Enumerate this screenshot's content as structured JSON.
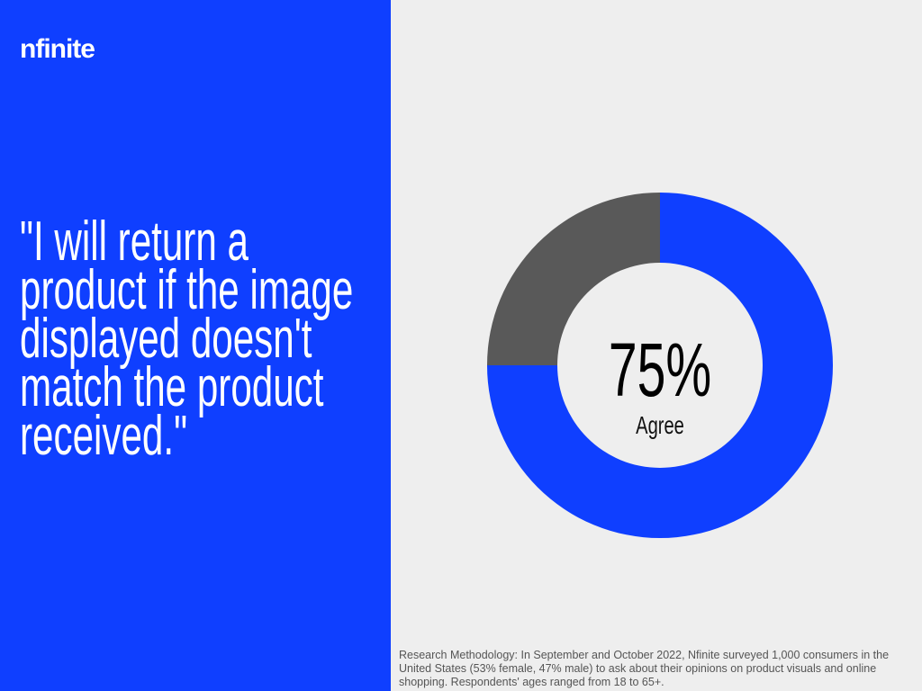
{
  "logo": "nfinite",
  "quote": "\"I will return a product if the image displayed doesn't match the product received.\"",
  "methodology": "Research Methodology: In September and October 2022, Nfinite surveyed 1,000 consumers in the United States (53% female, 47% male) to ask about their opinions on product visuals and online shopping. Respondents' ages ranged from 18 to 65+.",
  "chart_data": {
    "type": "donut",
    "categories": [
      "Agree",
      null
    ],
    "values": [
      75,
      25
    ],
    "value_labels": [
      "75%",
      null
    ],
    "colors": [
      "#0f3fff",
      "#595959"
    ]
  }
}
